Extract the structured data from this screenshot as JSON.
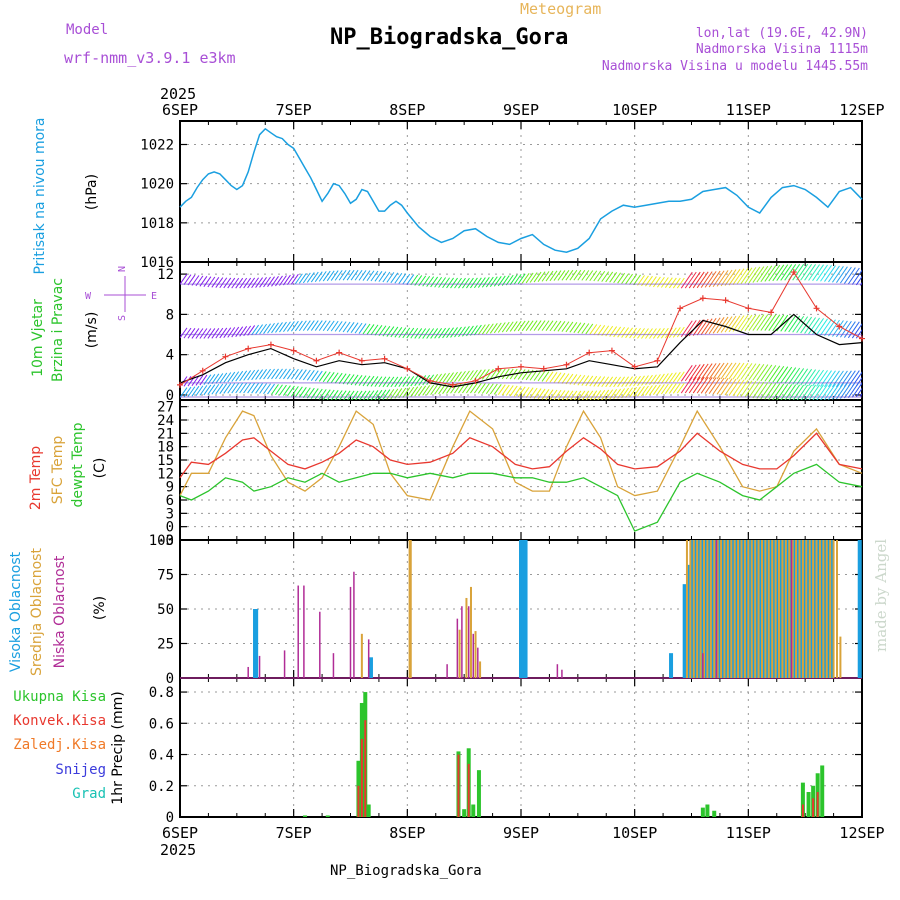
{
  "header": {
    "model_label": "Model",
    "model_name": "wrf-nmm_v3.9.1 e3km",
    "product": "Meteogram",
    "station": "NP_Biogradska_Gora",
    "lonlat": "lon,lat (19.6E, 42.9N)",
    "elevation": "Nadmorska Visina 1115m",
    "model_elevation": "Nadmorska Visina u modelu 1445.55m",
    "year": "2025",
    "footer": "NP_Biogradska_Gora",
    "credit": "made by Angel"
  },
  "colors": {
    "pressure": "#1a9fe0",
    "wind_speed": "#000000",
    "gust": "#e8382f",
    "t2m": "#e8382f",
    "tsfc": "#d9a33a",
    "dewpoint": "#2cc42c",
    "high_cloud": "#1a9fe0",
    "mid_cloud": "#d9a33a",
    "low_cloud": "#b02c96",
    "total_precip": "#2cc42c",
    "conv_precip": "#e8382f",
    "frozen_precip": "#f07a28",
    "snow": "#3c3cdc",
    "hail": "#19c2b4",
    "title_purple": "#a84fd6",
    "title_orange": "#e7b55a"
  },
  "chart_data": [
    {
      "type": "line",
      "id": "pressure",
      "ylabel": "Pritisak na nivou mora",
      "unit": "(hPa)",
      "ylim": [
        1016,
        1023.2
      ],
      "yticks": [
        1016,
        1018,
        1020,
        1022
      ],
      "x_days": [
        "6SEP",
        "7SEP",
        "8SEP",
        "9SEP",
        "10SEP",
        "11SEP",
        "12SEP"
      ],
      "series": [
        {
          "name": "MSLP",
          "x": [
            0,
            0.05,
            0.1,
            0.15,
            0.2,
            0.25,
            0.3,
            0.35,
            0.4,
            0.45,
            0.5,
            0.55,
            0.6,
            0.65,
            0.7,
            0.75,
            0.8,
            0.85,
            0.9,
            0.95,
            1,
            1.05,
            1.1,
            1.15,
            1.2,
            1.25,
            1.3,
            1.35,
            1.4,
            1.45,
            1.5,
            1.55,
            1.6,
            1.65,
            1.7,
            1.75,
            1.8,
            1.85,
            1.9,
            1.95,
            2,
            2.1,
            2.2,
            2.3,
            2.4,
            2.5,
            2.6,
            2.7,
            2.8,
            2.9,
            3,
            3.1,
            3.2,
            3.3,
            3.4,
            3.5,
            3.6,
            3.7,
            3.8,
            3.9,
            4,
            4.1,
            4.2,
            4.3,
            4.4,
            4.5,
            4.6,
            4.7,
            4.8,
            4.9,
            5,
            5.1,
            5.2,
            5.3,
            5.4,
            5.5,
            5.6,
            5.7,
            5.8,
            5.9,
            6
          ],
          "values": [
            1018.8,
            1019.1,
            1019.3,
            1019.8,
            1020.2,
            1020.5,
            1020.6,
            1020.5,
            1020.2,
            1019.9,
            1019.7,
            1019.9,
            1020.6,
            1021.6,
            1022.5,
            1022.8,
            1022.6,
            1022.4,
            1022.3,
            1022.0,
            1021.8,
            1021.3,
            1020.8,
            1020.3,
            1019.7,
            1019.1,
            1019.5,
            1020.0,
            1019.9,
            1019.5,
            1019.0,
            1019.2,
            1019.7,
            1019.6,
            1019.1,
            1018.6,
            1018.6,
            1018.9,
            1019.1,
            1018.9,
            1018.5,
            1017.8,
            1017.3,
            1017.0,
            1017.2,
            1017.6,
            1017.7,
            1017.3,
            1017.0,
            1016.9,
            1017.2,
            1017.4,
            1016.9,
            1016.6,
            1016.5,
            1016.7,
            1017.2,
            1018.2,
            1018.6,
            1018.9,
            1018.8,
            1018.9,
            1019.0,
            1019.1,
            1019.1,
            1019.2,
            1019.6,
            1019.7,
            1019.8,
            1019.4,
            1018.8,
            1018.5,
            1019.3,
            1019.8,
            1019.9,
            1019.7,
            1019.3,
            1018.8,
            1019.6,
            1019.8,
            1019.2
          ]
        }
      ]
    },
    {
      "type": "line",
      "id": "wind",
      "ylabel": "10m Vjetar",
      "ylabel2": "Brzina i Pravac",
      "unit": "(m/s)",
      "compass": [
        "N",
        "E",
        "S",
        "W"
      ],
      "ylim": [
        -0.5,
        13.2
      ],
      "yticks": [
        0,
        4,
        8,
        12
      ],
      "series": [
        {
          "name": "Wind speed",
          "x": [
            0,
            0.2,
            0.4,
            0.6,
            0.8,
            1.0,
            1.2,
            1.4,
            1.6,
            1.8,
            2.0,
            2.2,
            2.4,
            2.6,
            2.8,
            3.0,
            3.2,
            3.4,
            3.6,
            3.8,
            4.0,
            4.2,
            4.4,
            4.6,
            4.8,
            5.0,
            5.2,
            5.4,
            5.6,
            5.8,
            6.0
          ],
          "values": [
            1.2,
            2.0,
            3.2,
            4.0,
            4.6,
            3.6,
            2.8,
            3.4,
            3.0,
            3.2,
            2.6,
            1.2,
            0.8,
            1.2,
            1.8,
            2.2,
            2.4,
            2.6,
            3.4,
            3.0,
            2.6,
            2.8,
            5.2,
            7.4,
            6.8,
            6.0,
            6.0,
            8.0,
            6.0,
            5.0,
            5.2
          ]
        },
        {
          "name": "Gust",
          "x": [
            0,
            0.2,
            0.4,
            0.6,
            0.8,
            1.0,
            1.2,
            1.4,
            1.6,
            1.8,
            2.0,
            2.2,
            2.4,
            2.6,
            2.8,
            3.0,
            3.2,
            3.4,
            3.6,
            3.8,
            4.0,
            4.2,
            4.4,
            4.6,
            4.8,
            5.0,
            5.2,
            5.4,
            5.6,
            5.8,
            6.0
          ],
          "values": [
            1.0,
            2.4,
            3.8,
            4.6,
            5.0,
            4.4,
            3.4,
            4.2,
            3.4,
            3.6,
            2.6,
            1.4,
            1.0,
            1.4,
            2.6,
            2.8,
            2.6,
            3.0,
            4.2,
            4.4,
            2.8,
            3.4,
            8.6,
            9.6,
            9.4,
            8.6,
            8.2,
            12.2,
            8.6,
            6.8,
            5.6
          ]
        }
      ]
    },
    {
      "type": "line",
      "id": "temperature",
      "ylabel": "2m Temp",
      "ylabel2": "SFC Temp",
      "ylabel3": "dewpt Temp",
      "unit": "(C)",
      "ylim": [
        -3,
        28.5
      ],
      "yticks": [
        -3,
        0,
        3,
        6,
        9,
        12,
        15,
        18,
        21,
        24,
        27
      ],
      "series": [
        {
          "name": "2m Temp",
          "x": [
            0,
            0.1,
            0.25,
            0.4,
            0.55,
            0.65,
            0.8,
            0.95,
            1.1,
            1.25,
            1.4,
            1.55,
            1.7,
            1.85,
            2.0,
            2.2,
            2.4,
            2.55,
            2.75,
            2.95,
            3.1,
            3.25,
            3.4,
            3.55,
            3.7,
            3.85,
            4.0,
            4.2,
            4.4,
            4.55,
            4.75,
            4.95,
            5.1,
            5.25,
            5.4,
            5.6,
            5.8,
            6.0
          ],
          "values": [
            11,
            14.5,
            14,
            16.5,
            19.5,
            20,
            17,
            14,
            13,
            14.5,
            16.5,
            19.5,
            18,
            15,
            14,
            14.5,
            16.5,
            20,
            18,
            14,
            13,
            13.5,
            17,
            20,
            17.5,
            14,
            13,
            13.5,
            17,
            21,
            17,
            14,
            13,
            13,
            16,
            21,
            14,
            13
          ]
        },
        {
          "name": "SFC Temp",
          "x": [
            0,
            0.1,
            0.25,
            0.4,
            0.55,
            0.65,
            0.8,
            0.95,
            1.1,
            1.25,
            1.4,
            1.55,
            1.7,
            1.85,
            2.0,
            2.2,
            2.4,
            2.55,
            2.75,
            2.95,
            3.1,
            3.25,
            3.4,
            3.55,
            3.7,
            3.85,
            4.0,
            4.2,
            4.4,
            4.55,
            4.75,
            4.95,
            5.1,
            5.25,
            5.4,
            5.6,
            5.8,
            6.0
          ],
          "values": [
            7,
            12,
            12,
            20,
            26,
            25,
            16,
            10,
            8,
            11,
            18,
            26,
            23,
            12,
            7,
            6,
            18,
            26,
            22,
            10,
            8,
            8,
            18,
            26,
            20,
            9,
            7,
            8,
            18,
            26,
            18,
            9,
            8,
            9,
            17,
            22,
            14,
            12
          ]
        },
        {
          "name": "dewpt Temp",
          "x": [
            0,
            0.1,
            0.25,
            0.4,
            0.55,
            0.65,
            0.8,
            0.95,
            1.1,
            1.25,
            1.4,
            1.55,
            1.7,
            1.85,
            2.0,
            2.2,
            2.4,
            2.55,
            2.75,
            2.95,
            3.1,
            3.25,
            3.4,
            3.55,
            3.7,
            3.85,
            4.0,
            4.2,
            4.4,
            4.55,
            4.75,
            4.95,
            5.1,
            5.25,
            5.4,
            5.6,
            5.8,
            6.0
          ],
          "values": [
            7,
            6,
            8,
            11,
            10,
            8,
            9,
            11,
            10,
            12,
            10,
            11,
            12,
            12,
            11,
            12,
            11,
            12,
            12,
            11,
            11,
            10,
            10,
            11,
            9,
            7,
            -1,
            1,
            10,
            12,
            10,
            7,
            6,
            9,
            12,
            14,
            10,
            9
          ]
        }
      ]
    },
    {
      "type": "bar",
      "id": "clouds",
      "ylabel": "Visoka Oblacnost",
      "ylabel2": "Srednja Oblacnost",
      "ylabel3": "Niska Oblacnost",
      "unit": "(%)",
      "ylim": [
        0,
        100
      ],
      "yticks": [
        0,
        25,
        50,
        75,
        100
      ],
      "series": [
        {
          "name": "Visoka Oblacnost",
          "x": [
            0.66,
            0.67,
            1.68,
            3.0,
            3.02,
            3.04,
            4.32,
            4.44,
            4.47,
            4.5,
            4.53,
            4.56,
            4.59,
            4.62,
            4.65,
            4.68,
            4.71,
            4.74,
            4.77,
            4.8,
            4.83,
            4.86,
            4.89,
            4.92,
            4.95,
            4.98,
            5.01,
            5.04,
            5.07,
            5.1,
            5.13,
            5.16,
            5.19,
            5.22,
            5.25,
            5.28,
            5.31,
            5.34,
            5.37,
            5.4,
            5.43,
            5.46,
            5.49,
            5.52,
            5.55,
            5.58,
            5.61,
            5.64,
            5.67,
            5.7,
            5.73,
            5.98
          ],
          "values": [
            50,
            50,
            15,
            100,
            100,
            100,
            18,
            68,
            82,
            100,
            100,
            100,
            100,
            100,
            100,
            100,
            100,
            100,
            100,
            100,
            100,
            100,
            100,
            100,
            100,
            100,
            100,
            100,
            100,
            100,
            100,
            100,
            100,
            100,
            100,
            100,
            100,
            100,
            100,
            100,
            100,
            100,
            100,
            100,
            100,
            100,
            100,
            100,
            100,
            100,
            100,
            100
          ]
        },
        {
          "name": "Srednja Oblacnost",
          "x": [
            1.6,
            2.02,
            2.03,
            2.46,
            2.52,
            2.56,
            2.6,
            2.64,
            4.46,
            4.49,
            4.52,
            4.55,
            4.58,
            4.61,
            4.64,
            4.67,
            4.7,
            4.73,
            4.76,
            4.79,
            4.82,
            4.85,
            4.88,
            4.91,
            4.94,
            4.97,
            5.0,
            5.03,
            5.06,
            5.09,
            5.12,
            5.15,
            5.18,
            5.21,
            5.24,
            5.27,
            5.3,
            5.33,
            5.36,
            5.39,
            5.42,
            5.45,
            5.48,
            5.51,
            5.54,
            5.57,
            5.6,
            5.63,
            5.66,
            5.69,
            5.72,
            5.75,
            5.78,
            5.81
          ],
          "values": [
            32,
            100,
            100,
            35,
            58,
            66,
            34,
            12,
            100,
            100,
            100,
            100,
            100,
            100,
            100,
            100,
            100,
            100,
            100,
            100,
            100,
            100,
            100,
            100,
            100,
            100,
            100,
            100,
            100,
            100,
            100,
            100,
            100,
            100,
            100,
            100,
            100,
            100,
            100,
            100,
            100,
            100,
            100,
            100,
            100,
            100,
            100,
            100,
            100,
            100,
            100,
            100,
            100,
            30
          ]
        },
        {
          "name": "Niska Oblacnost",
          "x": [
            0.6,
            0.7,
            0.92,
            1.04,
            1.09,
            1.23,
            1.35,
            1.5,
            1.53,
            1.66,
            2.35,
            2.44,
            2.48,
            2.54,
            2.58,
            2.62,
            3.32,
            3.36,
            4.6,
            4.72,
            5.38
          ],
          "values": [
            8,
            16,
            20,
            67,
            67,
            48,
            18,
            66,
            77,
            28,
            10,
            43,
            52,
            52,
            32,
            22,
            10,
            6,
            18,
            100,
            100
          ]
        }
      ]
    },
    {
      "type": "bar",
      "id": "precip",
      "ylabel": "1hr Precip (mm)",
      "legend": [
        "Ukupna Kisa",
        "Konvek.Kisa",
        "Zaledj.Kisa",
        "Snijeg",
        "Grad"
      ],
      "ylim": [
        0,
        0.89
      ],
      "yticks": [
        0,
        0.2,
        0.4,
        0.6,
        0.8
      ],
      "series": [
        {
          "name": "Ukupna Kisa",
          "x": [
            1.1,
            1.3,
            1.57,
            1.6,
            1.63,
            1.66,
            2.45,
            2.5,
            2.54,
            2.58,
            2.63,
            4.6,
            4.64,
            4.7,
            5.48,
            5.53,
            5.57,
            5.61,
            5.65
          ],
          "values": [
            0.01,
            0.01,
            0.36,
            0.73,
            0.8,
            0.08,
            0.42,
            0.05,
            0.44,
            0.08,
            0.3,
            0.06,
            0.08,
            0.04,
            0.22,
            0.16,
            0.2,
            0.28,
            0.33
          ]
        },
        {
          "name": "Konvek.Kisa",
          "x": [
            1.57,
            1.6,
            1.63,
            2.45,
            2.54,
            5.48,
            5.57,
            5.61
          ],
          "values": [
            0.2,
            0.5,
            0.62,
            0.4,
            0.34,
            0.08,
            0.12,
            0.16
          ]
        }
      ]
    }
  ]
}
